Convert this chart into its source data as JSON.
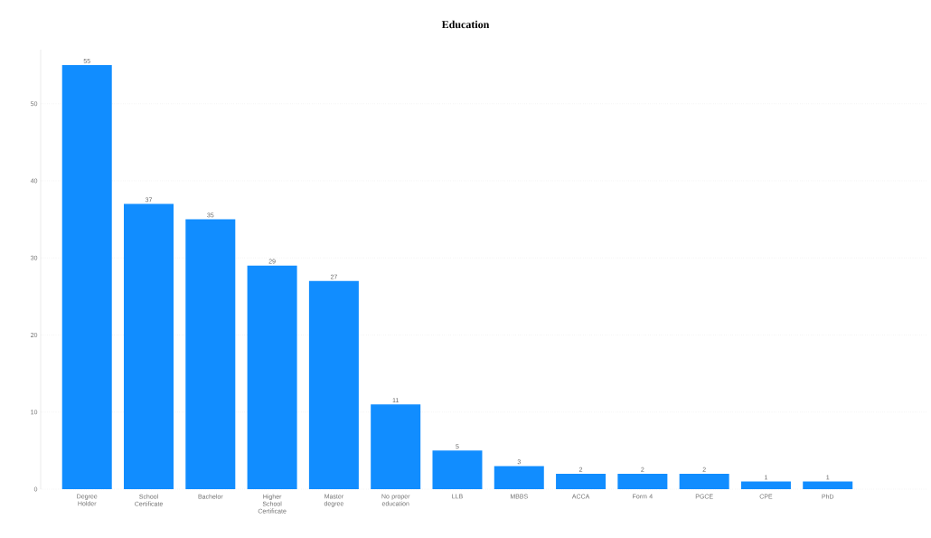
{
  "chart_data": {
    "type": "bar",
    "title": "Education",
    "categories": [
      "Degree Holder",
      "School Certificate",
      "Bachelor",
      "Higher School Certificate",
      "Master degree",
      "No proper education",
      "LLB",
      "MBBS",
      "ACCA",
      "Form 4",
      "PGCE",
      "CPE",
      "PhD"
    ],
    "values": [
      55,
      37,
      35,
      29,
      27,
      11,
      5,
      3,
      2,
      2,
      2,
      1,
      1
    ],
    "color": "#118dff",
    "ylim": [
      0,
      57
    ],
    "yticks": [
      0,
      10,
      20,
      30,
      40,
      50
    ],
    "grid": "y",
    "data_labels": true
  }
}
